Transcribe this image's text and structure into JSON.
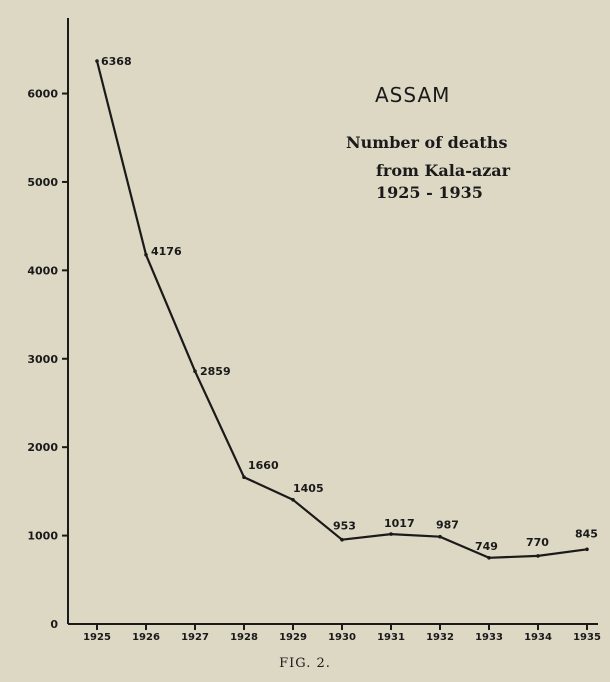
{
  "chart_data": {
    "type": "line",
    "title": "ASSAM",
    "subtitle_lines": [
      "Number of deaths",
      "from Kala-azar",
      "1925 - 1935"
    ],
    "caption": "FIG. 2.",
    "x": [
      "1925",
      "1926",
      "1927",
      "1928",
      "1929",
      "1930",
      "1931",
      "1932",
      "1933",
      "1934",
      "1935"
    ],
    "series": [
      {
        "values": [
          6368,
          4176,
          2859,
          1660,
          1405,
          953,
          1017,
          987,
          749,
          770,
          845
        ]
      }
    ],
    "data_labels": [
      "6368",
      "4176",
      "2859",
      "1660",
      "1405",
      "953",
      "1017",
      "987",
      "749",
      "770",
      "845"
    ],
    "y_ticks": [
      0,
      1000,
      2000,
      3000,
      4000,
      5000,
      6000
    ],
    "y_tick_labels": [
      "0",
      "1000",
      "2000",
      "3000",
      "4000",
      "5000",
      "6000"
    ],
    "ylim": [
      0,
      6500
    ],
    "grid": false,
    "line_color": "#1a1a1a",
    "background_color": "#ddd8c4"
  }
}
